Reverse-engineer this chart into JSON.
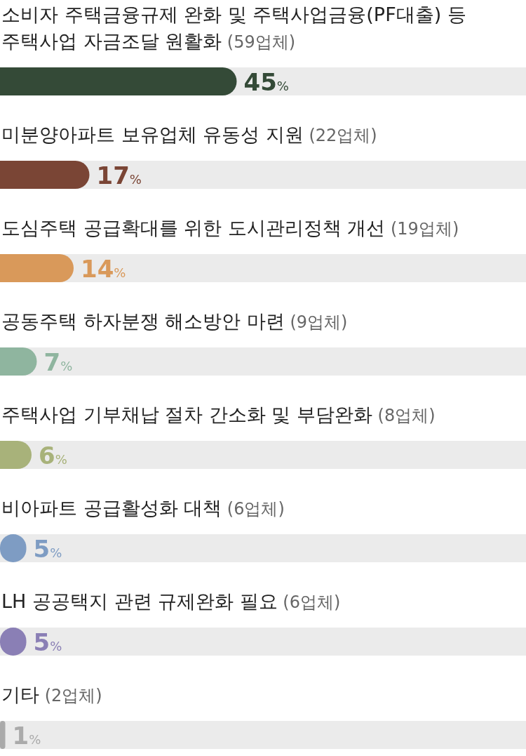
{
  "chart_data": {
    "type": "bar",
    "orientation": "horizontal",
    "categories": [
      "소비자 주택금융규제 완화 및 주택사업금융(PF대출) 등 주택사업 자금조달 원활화 (59업체)",
      "미분양아파트 보유업체 유동성 지원 (22업체)",
      "도심주택 공급확대를 위한 도시관리정책 개선 (19업체)",
      "공동주택 하자분쟁 해소방안 마련 (9업체)",
      "주택사업 기부채납 절차 간소화 및 부담완화 (8업체)",
      "비아파트 공급활성화 대책 (6업체)",
      "LH 공공택지 관련 규제완화 필요 (6업체)",
      "기타 (2업체)"
    ],
    "values": [
      45,
      17,
      14,
      7,
      6,
      5,
      5,
      1
    ],
    "colors": [
      "#344a37",
      "#7a4535",
      "#d9995a",
      "#8fb59f",
      "#a8b27a",
      "#7e9cc3",
      "#8a7fb5",
      "#aaaaaa"
    ],
    "value_labels": [
      "45%",
      "17%",
      "14%",
      "7%",
      "6%",
      "5%",
      "5%",
      "1%"
    ],
    "xlim": [
      0,
      100
    ]
  }
}
